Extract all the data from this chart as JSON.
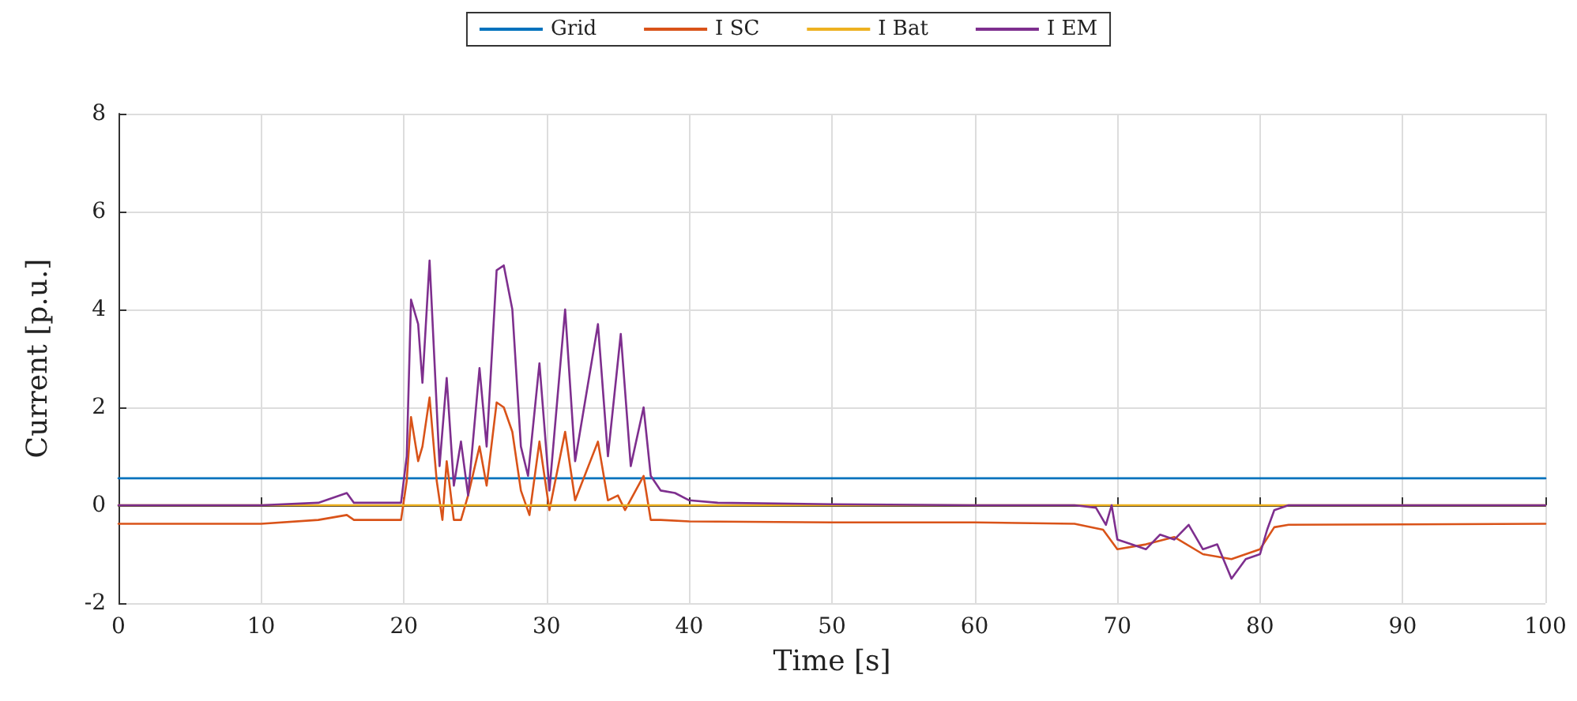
{
  "chart_data": {
    "type": "line",
    "xlabel": "Time [s]",
    "ylabel": "Current [p.u.]",
    "xlim": [
      0,
      100
    ],
    "xticks": [
      0,
      10,
      20,
      30,
      40,
      50,
      60,
      70,
      80,
      90,
      100
    ],
    "ylim": [
      -2,
      8
    ],
    "yticks": [
      -2,
      0,
      2,
      4,
      6,
      8
    ],
    "grid": true,
    "legend": "top",
    "marker": "none",
    "line_style": "solid",
    "series": [
      {
        "name": "Grid",
        "color": "#0072bd",
        "x": [
          0,
          100
        ],
        "values": [
          0.55,
          0.55
        ]
      },
      {
        "name": "I SC",
        "color": "#d95319",
        "x": [
          0,
          10,
          14,
          16,
          16.5,
          19.8,
          20.2,
          20.5,
          21,
          21.3,
          21.8,
          22.3,
          22.7,
          23,
          23.5,
          24,
          24.5,
          25.3,
          25.8,
          26.5,
          27,
          27.6,
          28.2,
          28.8,
          29.5,
          30.2,
          31.3,
          32,
          33.6,
          34.3,
          35,
          35.5,
          36.8,
          37.3,
          38,
          40,
          50,
          60,
          67,
          69,
          70,
          72,
          74,
          76,
          78,
          80,
          81,
          82,
          100
        ],
        "values": [
          -0.38,
          -0.38,
          -0.3,
          -0.2,
          -0.3,
          -0.3,
          0.5,
          1.8,
          0.9,
          1.2,
          2.2,
          0.5,
          -0.3,
          0.9,
          -0.3,
          -0.3,
          0.2,
          1.2,
          0.4,
          2.1,
          2.0,
          1.5,
          0.3,
          -0.2,
          1.3,
          -0.1,
          1.5,
          0.1,
          1.3,
          0.1,
          0.2,
          -0.1,
          0.6,
          -0.3,
          -0.3,
          -0.33,
          -0.35,
          -0.35,
          -0.38,
          -0.5,
          -0.9,
          -0.8,
          -0.65,
          -1.0,
          -1.1,
          -0.9,
          -0.45,
          -0.4,
          -0.38
        ]
      },
      {
        "name": "I Bat",
        "color": "#edb120",
        "x": [
          0,
          100
        ],
        "values": [
          0,
          0
        ]
      },
      {
        "name": "I EM",
        "color": "#7e2f8e",
        "x": [
          0,
          10,
          14,
          16,
          16.5,
          19.8,
          20.2,
          20.5,
          21,
          21.3,
          21.8,
          22.3,
          22.5,
          23,
          23.5,
          24,
          24.5,
          25.3,
          25.8,
          26.5,
          27,
          27.6,
          28.2,
          28.7,
          29.5,
          30.2,
          31.3,
          32,
          33.6,
          34.3,
          35.2,
          35.9,
          36.8,
          37.3,
          38,
          39,
          40,
          42,
          50,
          60,
          67,
          68.5,
          69.2,
          69.6,
          70,
          71,
          72,
          73,
          74,
          75,
          76,
          77,
          78,
          79,
          80,
          80.5,
          81,
          82,
          100
        ],
        "values": [
          0,
          0,
          0.05,
          0.25,
          0.05,
          0.05,
          1.0,
          4.2,
          3.7,
          2.5,
          5.0,
          2.0,
          0.8,
          2.6,
          0.4,
          1.3,
          0.2,
          2.8,
          1.2,
          4.8,
          4.9,
          4.0,
          1.2,
          0.6,
          2.9,
          0.3,
          4.0,
          0.9,
          3.7,
          1.0,
          3.5,
          0.8,
          2.0,
          0.6,
          0.3,
          0.25,
          0.1,
          0.05,
          0.02,
          0,
          0,
          -0.05,
          -0.4,
          0,
          -0.7,
          -0.8,
          -0.9,
          -0.6,
          -0.7,
          -0.4,
          -0.9,
          -0.8,
          -1.5,
          -1.1,
          -1.0,
          -0.5,
          -0.1,
          0,
          0
        ]
      }
    ]
  }
}
